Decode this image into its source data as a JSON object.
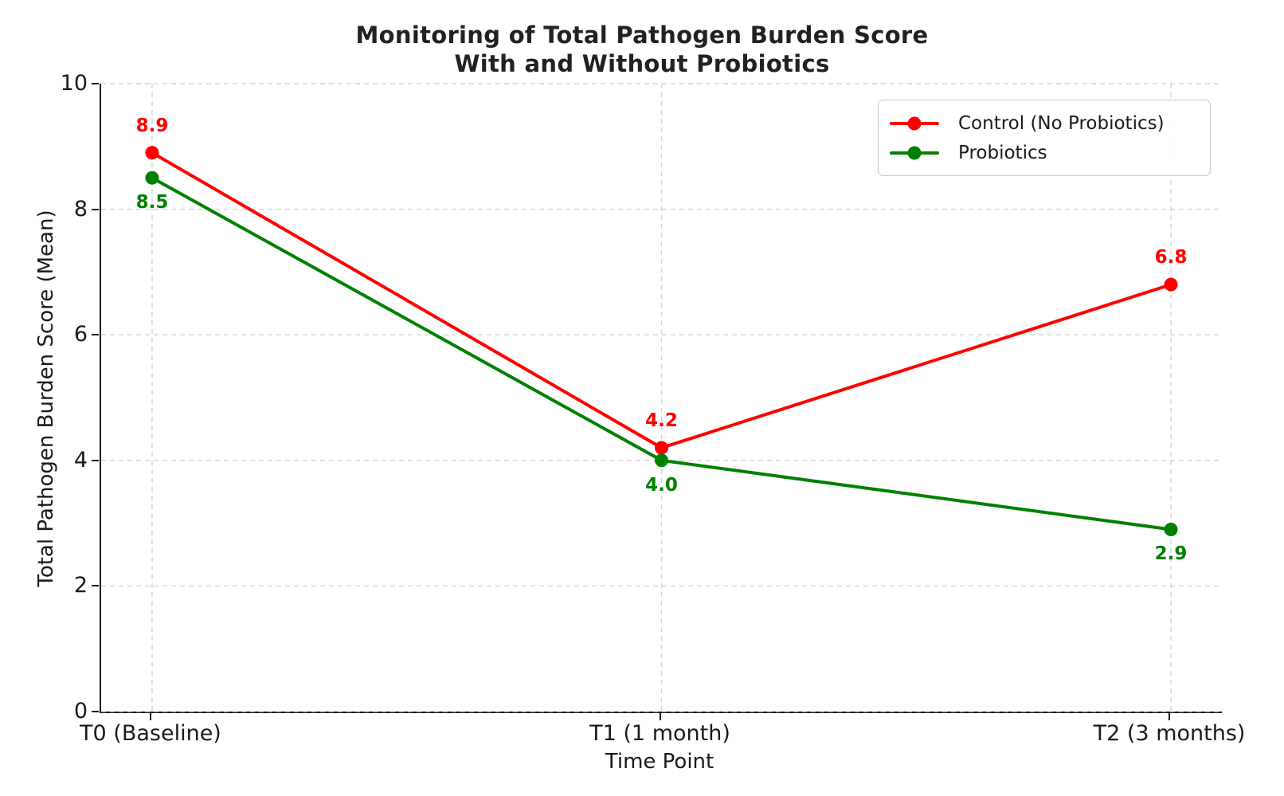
{
  "chart_data": {
    "type": "line",
    "title": "Monitoring of Total Pathogen Burden Score With and Without Probiotics",
    "title_line1": "Monitoring of Total Pathogen Burden Score",
    "title_line2": "With and Without Probiotics",
    "xlabel": "Time Point",
    "ylabel": "Total Pathogen Burden Score (Mean)",
    "categories": [
      "T0 (Baseline)",
      "T1 (1 month)",
      "T2 (3 months)"
    ],
    "series": [
      {
        "name": "Control (No Probiotics)",
        "color": "#ff0000",
        "values": [
          8.9,
          4.2,
          6.8
        ],
        "point_labels": [
          "8.9",
          "4.2",
          "6.8"
        ],
        "label_position": "above"
      },
      {
        "name": "Probiotics",
        "color": "#008000",
        "values": [
          8.5,
          4.0,
          2.9
        ],
        "point_labels": [
          "8.5",
          "4.0",
          "2.9"
        ],
        "label_position": "below"
      }
    ],
    "ylim": [
      0,
      10
    ],
    "yticks": [
      0,
      2,
      4,
      6,
      8,
      10
    ],
    "grid": true,
    "grid_style": "dashed",
    "grid_color": "#d3d3d3",
    "legend_position": "upper right",
    "marker": "circle",
    "line_width": 4
  }
}
